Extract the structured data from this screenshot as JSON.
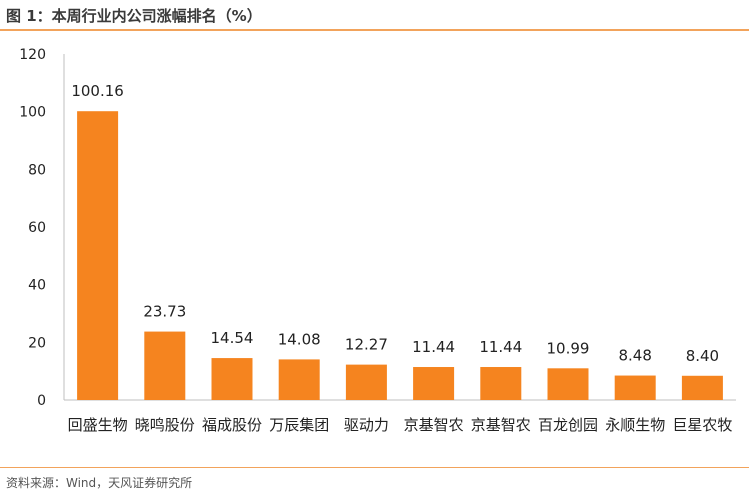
{
  "figure": {
    "title": "图 1：本周行业内公司涨幅排名（%）",
    "source": "资料来源：Wind，天风证券研究所"
  },
  "colors": {
    "bar": "#f5841f",
    "axis": "#bfbfbf",
    "rule": "#f2a35b"
  },
  "chart_data": {
    "type": "bar",
    "categories": [
      "回盛生物",
      "晓鸣股份",
      "福成股份",
      "万辰集团",
      "驱动力",
      "京基智农",
      "京基智农",
      "百龙创园",
      "永顺生物",
      "巨星农牧"
    ],
    "values": [
      100.16,
      23.73,
      14.54,
      14.08,
      12.27,
      11.44,
      11.44,
      10.99,
      8.48,
      8.4
    ],
    "data_labels": [
      "100.16",
      "23.73",
      "14.54",
      "14.08",
      "12.27",
      "11.44",
      "11.44",
      "10.99",
      "8.48",
      "8.40"
    ],
    "ylim": [
      0,
      120
    ],
    "yticks": [
      0,
      20,
      40,
      60,
      80,
      100,
      120
    ],
    "grid": false,
    "legend": "none"
  }
}
